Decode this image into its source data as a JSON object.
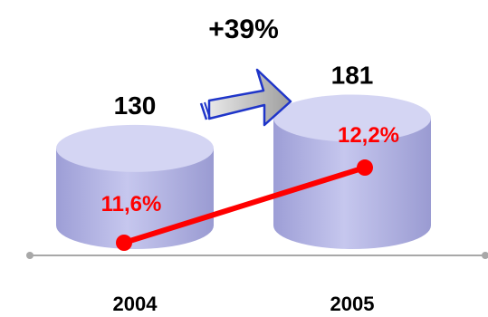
{
  "chart_data": {
    "type": "bar",
    "categories": [
      "2004",
      "2005"
    ],
    "series": [
      {
        "values": [
          130,
          181
        ]
      },
      {
        "values": [
          "11,6%",
          "12,2%"
        ],
        "numeric": [
          11.6,
          12.2
        ]
      }
    ],
    "annotation": "+39%",
    "colors": {
      "cylinder": "#b8b9e4",
      "cylinder_top": "#d4d5f3",
      "line": "#ff0000",
      "arrow_fill": "#c4c4c4",
      "arrow_stroke": "#1f35c9",
      "axis": "#a8a8a8"
    }
  }
}
